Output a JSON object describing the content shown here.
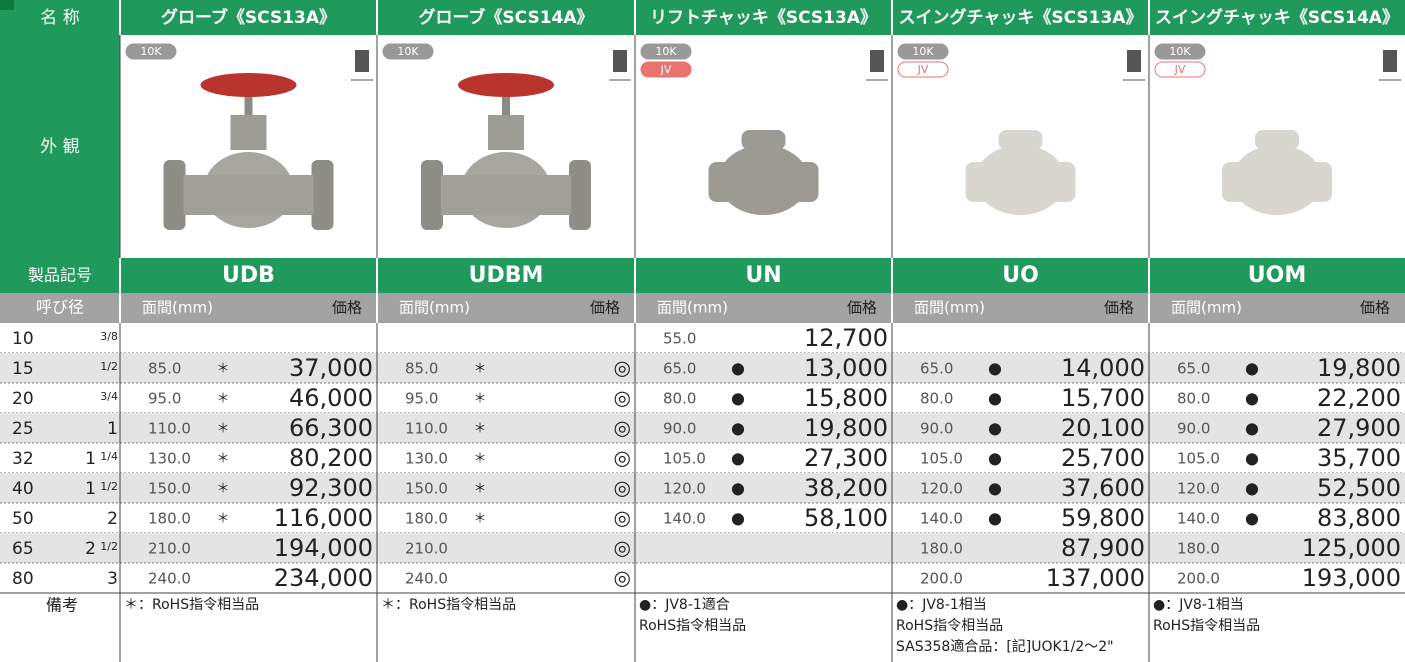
{
  "header": {
    "name_label": "名 称",
    "appearance_label": "外 観",
    "code_label": "製品記号",
    "size_label": "呼び径",
    "dim_label": "面間(mm)",
    "price_label": "価格",
    "remarks_label": "備考"
  },
  "sizes": [
    {
      "mm": "10",
      "frac": "3/8"
    },
    {
      "mm": "15",
      "frac": "1/2"
    },
    {
      "mm": "20",
      "frac": "3/4"
    },
    {
      "mm": "25",
      "whole": "1"
    },
    {
      "mm": "32",
      "whole": "1",
      "frac": "1/4"
    },
    {
      "mm": "40",
      "whole": "1",
      "frac": "1/2"
    },
    {
      "mm": "50",
      "whole": "2"
    },
    {
      "mm": "65",
      "whole": "2",
      "frac": "1/2"
    },
    {
      "mm": "80",
      "whole": "3"
    }
  ],
  "products": [
    {
      "name": "グローブ《SCS13A》",
      "code": "UDB",
      "badges": [
        "10K"
      ],
      "rows": [
        null,
        {
          "dim": "85.0",
          "mark": "＊",
          "price": "37,000"
        },
        {
          "dim": "95.0",
          "mark": "＊",
          "price": "46,000"
        },
        {
          "dim": "110.0",
          "mark": "＊",
          "price": "66,300"
        },
        {
          "dim": "130.0",
          "mark": "＊",
          "price": "80,200"
        },
        {
          "dim": "150.0",
          "mark": "＊",
          "price": "92,300"
        },
        {
          "dim": "180.0",
          "mark": "＊",
          "price": "116,000"
        },
        {
          "dim": "210.0",
          "price": "194,000"
        },
        {
          "dim": "240.0",
          "price": "234,000"
        }
      ],
      "remarks": [
        "＊：RoHS指令相当品"
      ]
    },
    {
      "name": "グローブ《SCS14A》",
      "code": "UDBM",
      "badges": [
        "10K"
      ],
      "rows": [
        null,
        {
          "dim": "85.0",
          "mark": "＊",
          "price": "◎"
        },
        {
          "dim": "95.0",
          "mark": "＊",
          "price": "◎"
        },
        {
          "dim": "110.0",
          "mark": "＊",
          "price": "◎"
        },
        {
          "dim": "130.0",
          "mark": "＊",
          "price": "◎"
        },
        {
          "dim": "150.0",
          "mark": "＊",
          "price": "◎"
        },
        {
          "dim": "180.0",
          "mark": "＊",
          "price": "◎"
        },
        {
          "dim": "210.0",
          "price": "◎"
        },
        {
          "dim": "240.0",
          "price": "◎"
        }
      ],
      "remarks": [
        "＊：RoHS指令相当品"
      ]
    },
    {
      "name": "リフトチャッキ《SCS13A》",
      "code": "UN",
      "badges": [
        "10K",
        "JV"
      ],
      "rows": [
        {
          "dim": "55.0",
          "price": "12,700"
        },
        {
          "dim": "65.0",
          "mark": "●",
          "price": "13,000"
        },
        {
          "dim": "80.0",
          "mark": "●",
          "price": "15,800"
        },
        {
          "dim": "90.0",
          "mark": "●",
          "price": "19,800"
        },
        {
          "dim": "105.0",
          "mark": "●",
          "price": "27,300"
        },
        {
          "dim": "120.0",
          "mark": "●",
          "price": "38,200"
        },
        {
          "dim": "140.0",
          "mark": "●",
          "price": "58,100"
        },
        null,
        null
      ],
      "remarks": [
        "●：JV8-1適合",
        "RoHS指令相当品"
      ]
    },
    {
      "name": "スイングチャッキ《SCS13A》",
      "code": "UO",
      "badges": [
        "10K",
        "JV"
      ],
      "rows": [
        null,
        {
          "dim": "65.0",
          "mark": "●",
          "price": "14,000"
        },
        {
          "dim": "80.0",
          "mark": "●",
          "price": "15,700"
        },
        {
          "dim": "90.0",
          "mark": "●",
          "price": "20,100"
        },
        {
          "dim": "105.0",
          "mark": "●",
          "price": "25,700"
        },
        {
          "dim": "120.0",
          "mark": "●",
          "price": "37,600"
        },
        {
          "dim": "140.0",
          "mark": "●",
          "price": "59,800"
        },
        {
          "dim": "180.0",
          "price": "87,900"
        },
        {
          "dim": "200.0",
          "price": "137,000"
        }
      ],
      "remarks": [
        "●：JV8-1相当",
        "RoHS指令相当品",
        "SAS358適合品：[記]UOK1/2～2\""
      ]
    },
    {
      "name": "スイングチャッキ《SCS14A》",
      "code": "UOM",
      "badges": [
        "10K",
        "JV"
      ],
      "rows": [
        null,
        {
          "dim": "65.0",
          "mark": "●",
          "price": "19,800"
        },
        {
          "dim": "80.0",
          "mark": "●",
          "price": "22,200"
        },
        {
          "dim": "90.0",
          "mark": "●",
          "price": "27,900"
        },
        {
          "dim": "105.0",
          "mark": "●",
          "price": "35,700"
        },
        {
          "dim": "120.0",
          "mark": "●",
          "price": "52,500"
        },
        {
          "dim": "140.0",
          "mark": "●",
          "price": "83,800"
        },
        {
          "dim": "180.0",
          "price": "125,000"
        },
        {
          "dim": "200.0",
          "price": "193,000"
        }
      ],
      "remarks": [
        "●：JV8-1相当",
        "RoHS指令相当品"
      ]
    }
  ]
}
